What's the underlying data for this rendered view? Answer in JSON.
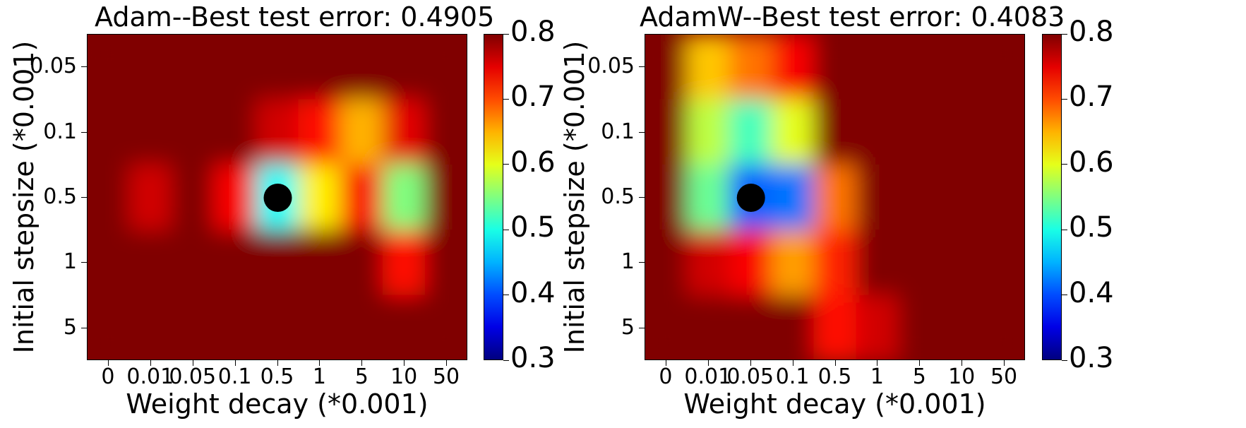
{
  "chart_data": [
    {
      "type": "heatmap",
      "title": "Adam--Best test error: 0.4905",
      "xlabel": "Weight decay (*0.001)",
      "ylabel": "Initial stepsize (*0.001)",
      "x_categories": [
        "0",
        "0.01",
        "0.05",
        "0.1",
        "0.5",
        "1",
        "5",
        "10",
        "50"
      ],
      "y_categories": [
        "0.05",
        "0.1",
        "0.5",
        "1",
        "5"
      ],
      "values": [
        [
          0.8,
          0.8,
          0.8,
          0.8,
          0.8,
          0.8,
          0.8,
          0.8,
          0.8
        ],
        [
          0.8,
          0.8,
          0.8,
          0.8,
          0.76,
          0.73,
          0.65,
          0.75,
          0.8
        ],
        [
          0.8,
          0.76,
          0.8,
          0.74,
          0.49,
          0.62,
          0.74,
          0.55,
          0.8
        ],
        [
          0.8,
          0.8,
          0.8,
          0.8,
          0.8,
          0.8,
          0.8,
          0.73,
          0.8
        ],
        [
          0.8,
          0.8,
          0.8,
          0.8,
          0.8,
          0.8,
          0.8,
          0.8,
          0.8
        ]
      ],
      "best_point": {
        "x": "0.5",
        "y": "0.5"
      },
      "colorbar": {
        "colormap": "jet",
        "range": [
          0.3,
          0.8
        ],
        "ticks": [
          "0.3",
          "0.4",
          "0.5",
          "0.6",
          "0.7",
          "0.8"
        ]
      }
    },
    {
      "type": "heatmap",
      "title": "AdamW--Best test error: 0.4083",
      "xlabel": "Weight decay (*0.001)",
      "ylabel": "Initial stepsize (*0.001)",
      "x_categories": [
        "0",
        "0.01",
        "0.05",
        "0.1",
        "0.5",
        "1",
        "5",
        "10",
        "50"
      ],
      "y_categories": [
        "0.05",
        "0.1",
        "0.5",
        "1",
        "5"
      ],
      "values": [
        [
          0.8,
          0.64,
          0.68,
          0.74,
          0.8,
          0.8,
          0.8,
          0.8,
          0.8
        ],
        [
          0.8,
          0.58,
          0.52,
          0.6,
          0.8,
          0.8,
          0.8,
          0.8,
          0.8
        ],
        [
          0.8,
          0.54,
          0.41,
          0.42,
          0.68,
          0.8,
          0.8,
          0.8,
          0.8
        ],
        [
          0.8,
          0.76,
          0.74,
          0.66,
          0.72,
          0.8,
          0.8,
          0.8,
          0.8
        ],
        [
          0.8,
          0.8,
          0.8,
          0.8,
          0.73,
          0.76,
          0.8,
          0.8,
          0.8
        ]
      ],
      "best_point": {
        "x": "0.05",
        "y": "0.5"
      },
      "colorbar": {
        "colormap": "jet",
        "range": [
          0.3,
          0.8
        ],
        "ticks": [
          "0.3",
          "0.4",
          "0.5",
          "0.6",
          "0.7",
          "0.8"
        ]
      }
    }
  ]
}
